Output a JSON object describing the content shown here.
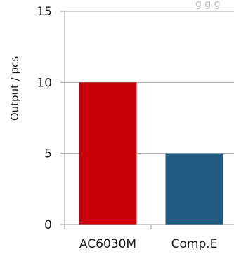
{
  "chart_data": {
    "type": "bar",
    "title": "",
    "xlabel": "",
    "ylabel": "Output / pcs",
    "categories": [
      "AC6030M",
      "Comp.E"
    ],
    "values": [
      10,
      5
    ],
    "ylim": [
      0,
      15
    ],
    "yticks": [
      "0",
      "5",
      "10",
      "15"
    ],
    "grid": true,
    "colors": [
      "#c8000a",
      "#215b82"
    ],
    "top_right_fragment": "g g g"
  }
}
